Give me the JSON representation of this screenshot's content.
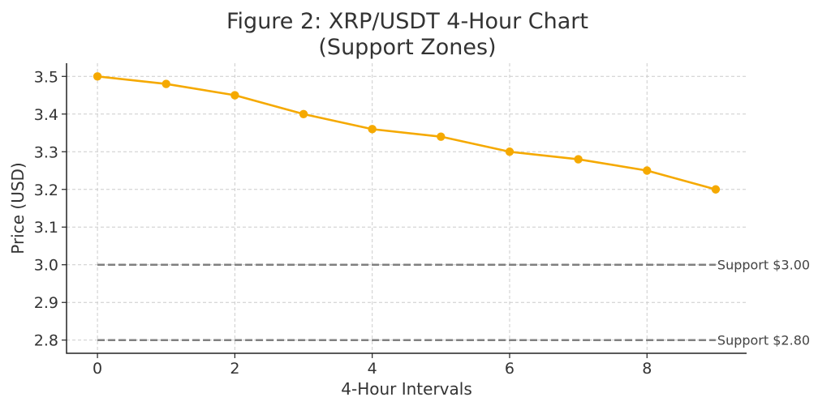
{
  "chart_data": {
    "type": "line",
    "title": [
      "Figure 2: XRP/USDT 4-Hour Chart",
      "(Support Zones)"
    ],
    "xlabel": "4-Hour Intervals",
    "ylabel": "Price (USD)",
    "x": [
      0,
      1,
      2,
      3,
      4,
      5,
      6,
      7,
      8,
      9
    ],
    "series": [
      {
        "name": "",
        "color": "#f5a900",
        "values": [
          3.5,
          3.48,
          3.45,
          3.4,
          3.36,
          3.34,
          3.3,
          3.28,
          3.25,
          3.2
        ]
      }
    ],
    "xticks": [
      0,
      2,
      4,
      6,
      8
    ],
    "xtick_labels": [
      "0",
      "2",
      "4",
      "6",
      "8"
    ],
    "yticks": [
      2.8,
      2.9,
      3.0,
      3.1,
      3.2,
      3.3,
      3.4,
      3.5
    ],
    "ytick_labels": [
      "2.8",
      "2.9",
      "3.0",
      "3.1",
      "3.2",
      "3.3",
      "3.4",
      "3.5"
    ],
    "xlim": [
      -0.45,
      9.45
    ],
    "ylim": [
      2.765,
      3.535
    ],
    "grid": true,
    "support_lines": [
      {
        "value": 3.0,
        "label": "Support $3.00",
        "color": "#808080"
      },
      {
        "value": 2.8,
        "label": "Support $2.80",
        "color": "#808080"
      }
    ]
  }
}
